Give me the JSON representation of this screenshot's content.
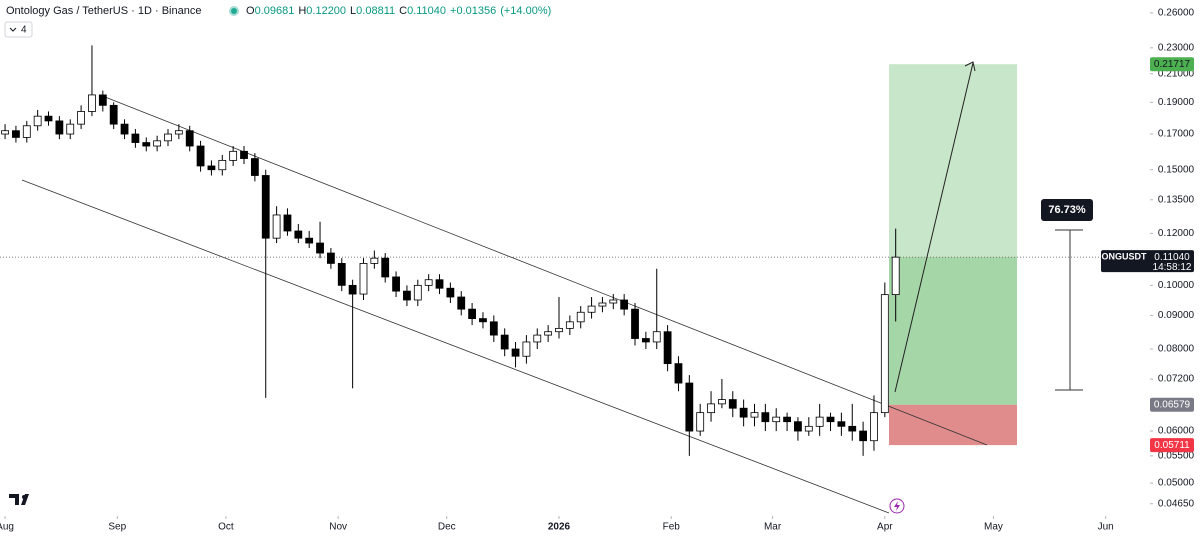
{
  "chart_data": {
    "type": "candlestick",
    "title": "Ontology Gas / TetherUS · 1D · Binance",
    "header": {
      "ohlc": [
        {
          "label": "O",
          "value": "0.09681"
        },
        {
          "label": "H",
          "value": "0.12200"
        },
        {
          "label": "L",
          "value": "0.08811"
        },
        {
          "label": "C",
          "value": "0.11040"
        }
      ],
      "change": "+0.01356",
      "change_pct": "(+14.00%)",
      "indicators": "4"
    },
    "log_scale": true,
    "up_color": "#ffffff",
    "down_color": "#000000",
    "xlim": [
      -1.4,
      312.1
    ],
    "ylim": [
      0.0447,
      0.272
    ],
    "xticks": [
      {
        "value": 0,
        "label": "Aug"
      },
      {
        "value": 31,
        "label": "Sep"
      },
      {
        "value": 61,
        "label": "Oct"
      },
      {
        "value": 92,
        "label": "Nov"
      },
      {
        "value": 122,
        "label": "Dec"
      },
      {
        "value": 153,
        "label": "2026"
      },
      {
        "value": 184,
        "label": "Feb"
      },
      {
        "value": 212,
        "label": "Mar"
      },
      {
        "value": 243,
        "label": "Apr"
      },
      {
        "value": 273,
        "label": "May"
      },
      {
        "value": 304,
        "label": "Jun"
      }
    ],
    "yticks": [
      {
        "value": 0.26,
        "label": "0.26000"
      },
      {
        "value": 0.23,
        "label": "0.23000"
      },
      {
        "value": 0.21,
        "label": "0.21000"
      },
      {
        "value": 0.19,
        "label": "0.19000"
      },
      {
        "value": 0.17,
        "label": "0.17000"
      },
      {
        "value": 0.15,
        "label": "0.15000"
      },
      {
        "value": 0.135,
        "label": "0.13500"
      },
      {
        "value": 0.12,
        "label": "0.12000"
      },
      {
        "value": 0.1,
        "label": "0.10000"
      },
      {
        "value": 0.09,
        "label": "0.09000"
      },
      {
        "value": 0.08,
        "label": "0.08000"
      },
      {
        "value": 0.072,
        "label": "0.07200"
      },
      {
        "value": 0.06,
        "label": "0.06000"
      },
      {
        "value": 0.055,
        "label": "0.05500"
      },
      {
        "value": 0.05,
        "label": "0.05000"
      },
      {
        "value": 0.0465,
        "label": "0.04650"
      }
    ],
    "x": [
      0,
      3,
      6,
      9,
      12,
      15,
      18,
      21,
      24,
      27,
      30,
      33,
      36,
      39,
      42,
      45,
      48,
      51,
      54,
      57,
      60,
      63,
      66,
      69,
      72,
      75,
      78,
      81,
      84,
      87,
      90,
      93,
      96,
      99,
      102,
      105,
      108,
      111,
      114,
      117,
      120,
      123,
      126,
      129,
      132,
      135,
      138,
      141,
      144,
      147,
      150,
      153,
      156,
      159,
      162,
      165,
      168,
      171,
      174,
      177,
      180,
      183,
      186,
      189,
      192,
      195,
      198,
      201,
      204,
      207,
      210,
      213,
      216,
      219,
      222,
      225,
      228,
      231,
      234,
      237,
      240,
      243,
      246
    ],
    "open": [
      0.17,
      0.172,
      0.168,
      0.175,
      0.181,
      0.178,
      0.17,
      0.176,
      0.184,
      0.195,
      0.188,
      0.176,
      0.17,
      0.165,
      0.163,
      0.166,
      0.17,
      0.172,
      0.163,
      0.152,
      0.15,
      0.155,
      0.16,
      0.156,
      0.147,
      0.118,
      0.128,
      0.121,
      0.118,
      0.116,
      0.112,
      0.108,
      0.1,
      0.097,
      0.108,
      0.11,
      0.103,
      0.098,
      0.095,
      0.1,
      0.102,
      0.099,
      0.096,
      0.092,
      0.089,
      0.088,
      0.084,
      0.08,
      0.078,
      0.082,
      0.084,
      0.085,
      0.086,
      0.088,
      0.091,
      0.093,
      0.094,
      0.095,
      0.092,
      0.083,
      0.082,
      0.085,
      0.076,
      0.071,
      0.06,
      0.064,
      0.066,
      0.067,
      0.065,
      0.063,
      0.064,
      0.062,
      0.063,
      0.062,
      0.06,
      0.061,
      0.063,
      0.062,
      0.061,
      0.06,
      0.058,
      0.064,
      0.09681
    ],
    "high": [
      0.176,
      0.175,
      0.178,
      0.185,
      0.184,
      0.181,
      0.179,
      0.188,
      0.232,
      0.198,
      0.19,
      0.179,
      0.173,
      0.168,
      0.169,
      0.173,
      0.176,
      0.175,
      0.166,
      0.155,
      0.158,
      0.163,
      0.163,
      0.159,
      0.15,
      0.132,
      0.131,
      0.124,
      0.121,
      0.125,
      0.114,
      0.11,
      0.102,
      0.11,
      0.113,
      0.112,
      0.105,
      0.1,
      0.102,
      0.104,
      0.104,
      0.101,
      0.098,
      0.094,
      0.091,
      0.09,
      0.086,
      0.082,
      0.084,
      0.086,
      0.087,
      0.096,
      0.09,
      0.093,
      0.096,
      0.096,
      0.097,
      0.097,
      0.094,
      0.085,
      0.106,
      0.087,
      0.078,
      0.073,
      0.066,
      0.069,
      0.072,
      0.069,
      0.067,
      0.066,
      0.066,
      0.065,
      0.064,
      0.063,
      0.063,
      0.066,
      0.064,
      0.064,
      0.066,
      0.062,
      0.068,
      0.101,
      0.122
    ],
    "low": [
      0.167,
      0.165,
      0.165,
      0.172,
      0.175,
      0.167,
      0.167,
      0.173,
      0.181,
      0.184,
      0.173,
      0.167,
      0.162,
      0.16,
      0.16,
      0.163,
      0.167,
      0.16,
      0.149,
      0.147,
      0.147,
      0.152,
      0.153,
      0.144,
      0.0674,
      0.116,
      0.119,
      0.116,
      0.114,
      0.11,
      0.106,
      0.098,
      0.0697,
      0.095,
      0.106,
      0.101,
      0.096,
      0.093,
      0.093,
      0.098,
      0.097,
      0.094,
      0.09,
      0.087,
      0.086,
      0.082,
      0.078,
      0.075,
      0.076,
      0.08,
      0.082,
      0.083,
      0.084,
      0.086,
      0.089,
      0.091,
      0.092,
      0.09,
      0.081,
      0.08,
      0.08,
      0.074,
      0.069,
      0.055,
      0.059,
      0.062,
      0.065,
      0.063,
      0.061,
      0.061,
      0.06,
      0.06,
      0.06,
      0.058,
      0.059,
      0.059,
      0.06,
      0.059,
      0.058,
      0.055,
      0.056,
      0.063,
      0.08811
    ],
    "close": [
      0.172,
      0.168,
      0.175,
      0.181,
      0.178,
      0.17,
      0.176,
      0.184,
      0.195,
      0.188,
      0.176,
      0.17,
      0.165,
      0.163,
      0.166,
      0.17,
      0.172,
      0.163,
      0.152,
      0.15,
      0.155,
      0.16,
      0.156,
      0.147,
      0.118,
      0.128,
      0.121,
      0.118,
      0.116,
      0.112,
      0.108,
      0.1,
      0.097,
      0.108,
      0.11,
      0.103,
      0.098,
      0.095,
      0.1,
      0.102,
      0.099,
      0.096,
      0.092,
      0.089,
      0.088,
      0.084,
      0.08,
      0.078,
      0.082,
      0.084,
      0.085,
      0.086,
      0.088,
      0.091,
      0.093,
      0.094,
      0.095,
      0.092,
      0.083,
      0.082,
      0.085,
      0.076,
      0.071,
      0.06,
      0.064,
      0.066,
      0.067,
      0.065,
      0.063,
      0.064,
      0.062,
      0.063,
      0.062,
      0.06,
      0.061,
      0.063,
      0.062,
      0.061,
      0.06,
      0.058,
      0.064,
      0.0968,
      0.1104
    ],
    "last_price": {
      "symbol": "ONGUSDT",
      "price": {
        "value": 0.1104,
        "label": "0.11040"
      },
      "countdown": "14:58:12"
    },
    "position": {
      "target": 0.21717,
      "entry": 0.06579,
      "stop": 0.05711,
      "gain_label": "76.73%"
    }
  }
}
